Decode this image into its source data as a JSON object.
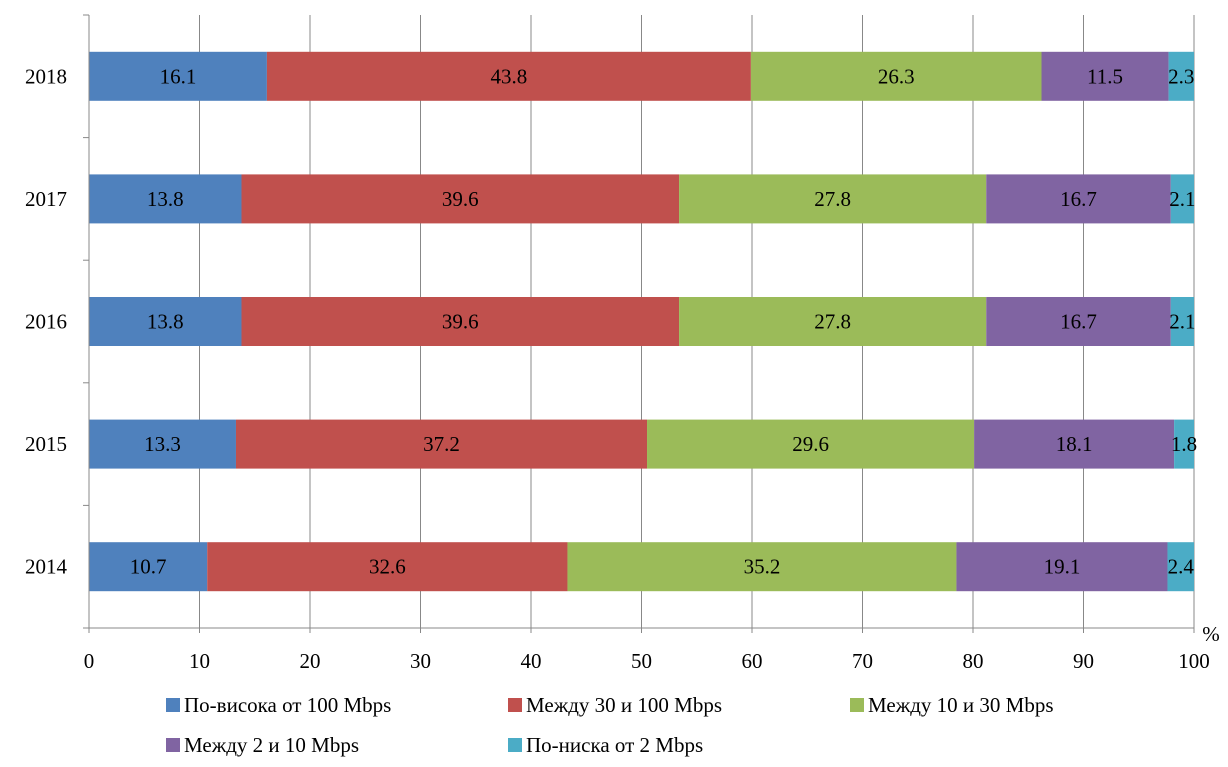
{
  "chart_data": {
    "type": "bar",
    "orientation": "horizontal",
    "stacked": true,
    "title": "",
    "xlabel": "",
    "ylabel": "",
    "x_unit": "%",
    "xlim": [
      0,
      100
    ],
    "x_ticks": [
      0,
      10,
      20,
      30,
      40,
      50,
      60,
      70,
      80,
      90,
      100
    ],
    "grid": "vertical",
    "legend_position": "bottom",
    "categories": [
      "2018",
      "2017",
      "2016",
      "2015",
      "2014"
    ],
    "series": [
      {
        "name": "По-висока от 100 Mbps",
        "color": "#4F81BD",
        "values": [
          16.1,
          13.8,
          13.8,
          13.3,
          10.7
        ]
      },
      {
        "name": "Между 30 и 100 Mbps",
        "color": "#C0504D",
        "values": [
          43.8,
          39.6,
          39.6,
          37.2,
          32.6
        ]
      },
      {
        "name": "Между 10 и 30 Mbps",
        "color": "#9BBB59",
        "values": [
          26.3,
          27.8,
          27.8,
          29.6,
          35.2
        ]
      },
      {
        "name": "Между 2 и 10 Mbps",
        "color": "#8064A2",
        "values": [
          11.5,
          16.7,
          16.7,
          18.1,
          19.1
        ]
      },
      {
        "name": "По-ниска от 2 Mbps",
        "color": "#4BACC6",
        "values": [
          2.3,
          2.1,
          2.1,
          1.8,
          2.4
        ]
      }
    ]
  }
}
